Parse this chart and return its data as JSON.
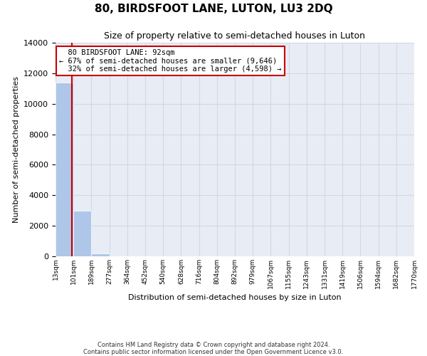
{
  "title": "80, BIRDSFOOT LANE, LUTON, LU3 2DQ",
  "subtitle": "Size of property relative to semi-detached houses in Luton",
  "xlabel": "Distribution of semi-detached houses by size in Luton",
  "ylabel": "Number of semi-detached properties",
  "property_size": 92,
  "pct_smaller": 67,
  "count_smaller": 9646,
  "pct_larger": 32,
  "count_larger": 4598,
  "annotation_label": "80 BIRDSFOOT LANE: 92sqm",
  "bin_edges": [
    13,
    101,
    189,
    277,
    364,
    452,
    540,
    628,
    716,
    804,
    892,
    979,
    1067,
    1155,
    1243,
    1331,
    1419,
    1506,
    1594,
    1682,
    1770
  ],
  "bin_labels": [
    "13sqm",
    "101sqm",
    "189sqm",
    "277sqm",
    "364sqm",
    "452sqm",
    "540sqm",
    "628sqm",
    "716sqm",
    "804sqm",
    "892sqm",
    "979sqm",
    "1067sqm",
    "1155sqm",
    "1243sqm",
    "1331sqm",
    "1419sqm",
    "1506sqm",
    "1594sqm",
    "1682sqm",
    "1770sqm"
  ],
  "bar_values": [
    11400,
    3000,
    200,
    0,
    0,
    0,
    0,
    0,
    0,
    0,
    0,
    0,
    0,
    0,
    0,
    0,
    0,
    0,
    0,
    0
  ],
  "bar_color": "#aec6e8",
  "vline_color": "#cc0000",
  "vline_x": 92,
  "ylim": [
    0,
    14000
  ],
  "yticks": [
    0,
    2000,
    4000,
    6000,
    8000,
    10000,
    12000,
    14000
  ],
  "grid_color": "#d0d8e8",
  "background_color": "#e8edf5",
  "annotation_box_color": "#ffffff",
  "annotation_box_edge_color": "#cc0000",
  "footer_line1": "Contains HM Land Registry data © Crown copyright and database right 2024.",
  "footer_line2": "Contains public sector information licensed under the Open Government Licence v3.0."
}
